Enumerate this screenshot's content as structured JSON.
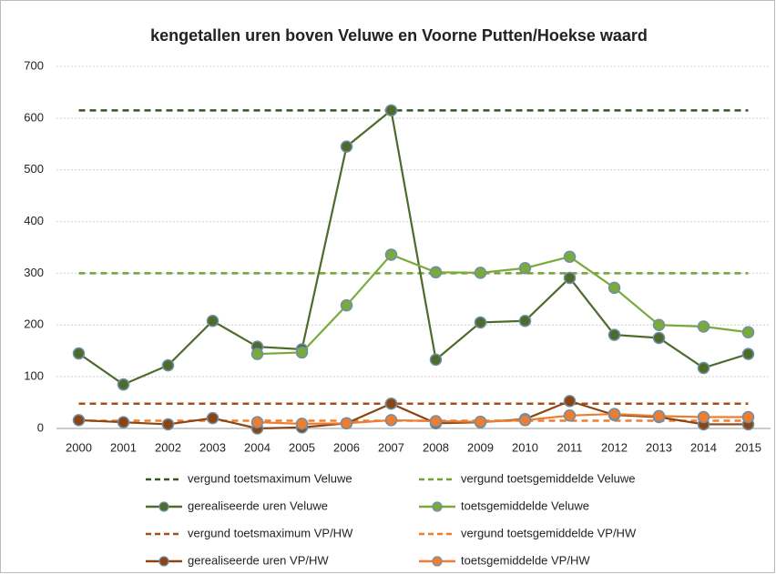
{
  "chart_data": {
    "type": "line",
    "title": "kengetallen uren boven Veluwe en Voorne Putten/Hoekse waard",
    "categories": [
      "2000",
      "2001",
      "2002",
      "2003",
      "2004",
      "2005",
      "2006",
      "2007",
      "2008",
      "2009",
      "2010",
      "2011",
      "2012",
      "2013",
      "2014",
      "2015"
    ],
    "ylim": [
      0,
      700
    ],
    "yticks": [
      0,
      100,
      200,
      300,
      400,
      500,
      600,
      700
    ],
    "grid": true,
    "series": [
      {
        "name": "vergund toetsmaximum Veluwe",
        "color": "#375623",
        "dashed": true,
        "values": [
          615,
          615,
          615,
          615,
          615,
          615,
          615,
          615,
          615,
          615,
          615,
          615,
          615,
          615,
          615,
          615
        ]
      },
      {
        "name": "vergund toetsgemiddelde Veluwe",
        "color": "#70a432",
        "dashed": true,
        "values": [
          300,
          300,
          300,
          300,
          300,
          300,
          300,
          300,
          300,
          300,
          300,
          300,
          300,
          300,
          300,
          300
        ]
      },
      {
        "name": "gerealiseerde uren Veluwe",
        "color": "#4e6b2c",
        "dashed": false,
        "values": [
          145,
          85,
          122,
          208,
          158,
          153,
          545,
          615,
          133,
          205,
          208,
          291,
          181,
          175,
          117,
          144
        ]
      },
      {
        "name": "toetsgemiddelde Veluwe",
        "color": "#7aaa3c",
        "dashed": false,
        "values": [
          null,
          null,
          null,
          null,
          144,
          147,
          238,
          336,
          302,
          301,
          310,
          332,
          272,
          200,
          197,
          186
        ]
      },
      {
        "name": "vergund toetsmaximum VP/HW",
        "color": "#a5501a",
        "dashed": true,
        "values": [
          48,
          48,
          48,
          48,
          48,
          48,
          48,
          48,
          48,
          48,
          48,
          48,
          48,
          48,
          48,
          48
        ]
      },
      {
        "name": "vergund toetsgemiddelde VP/HW",
        "color": "#ed7d31",
        "dashed": true,
        "values": [
          15,
          15,
          15,
          15,
          15,
          15,
          15,
          15,
          15,
          15,
          15,
          15,
          15,
          15,
          15,
          15
        ]
      },
      {
        "name": "gerealiseerde uren VP/HW",
        "color": "#8b4513",
        "dashed": false,
        "values": [
          16,
          12,
          8,
          20,
          0,
          2,
          10,
          48,
          10,
          12,
          18,
          53,
          26,
          22,
          8,
          8
        ]
      },
      {
        "name": "toetsgemiddelde VP/HW",
        "color": "#ed7d31",
        "dashed": false,
        "values": [
          null,
          null,
          null,
          null,
          12,
          9,
          10,
          16,
          14,
          13,
          16,
          25,
          28,
          24,
          22,
          22
        ]
      }
    ]
  }
}
